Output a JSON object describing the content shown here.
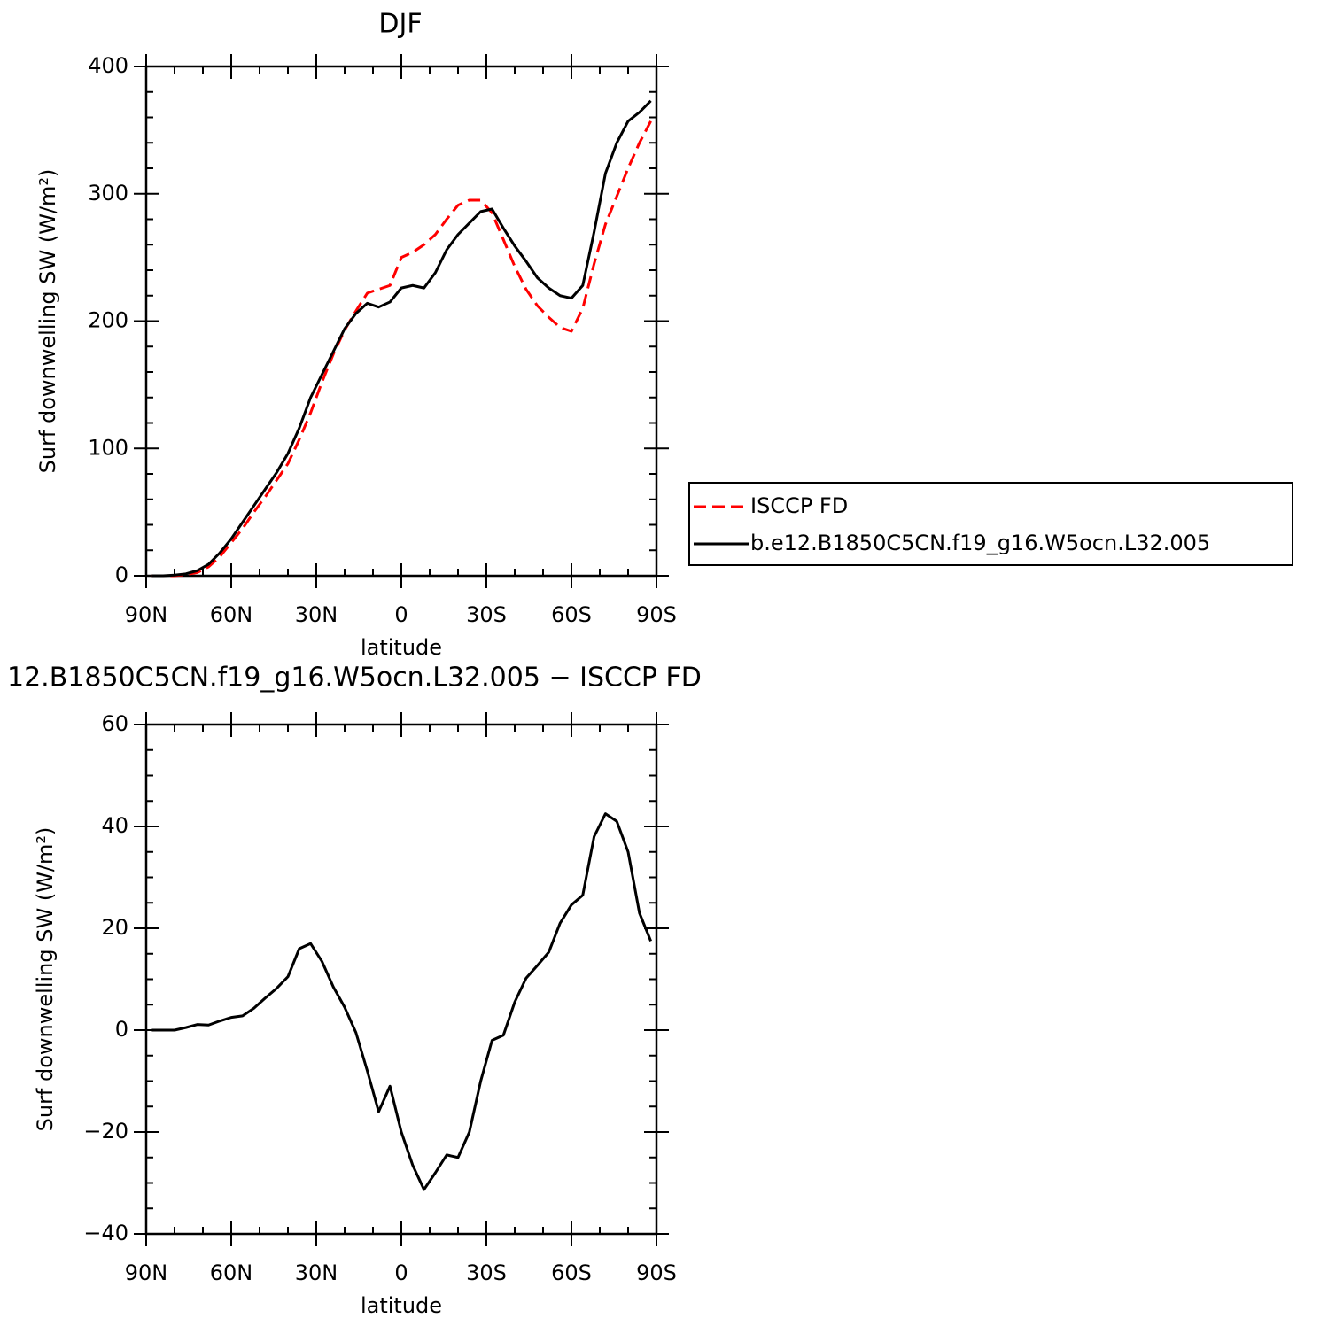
{
  "chart_data": [
    {
      "type": "line",
      "title": "DJF",
      "xlabel": "latitude",
      "ylabel": "Surf downwelling SW (W/m²)",
      "x": [
        88,
        84,
        80,
        76,
        72,
        68,
        64,
        60,
        56,
        52,
        48,
        44,
        40,
        36,
        32,
        28,
        24,
        20,
        16,
        12,
        8,
        4,
        0,
        -4,
        -8,
        -12,
        -16,
        -20,
        -24,
        -28,
        -32,
        -36,
        -40,
        -44,
        -48,
        -52,
        -56,
        -60,
        -64,
        -68,
        -72,
        -76,
        -80,
        -84,
        -88
      ],
      "xlim": [
        90,
        -90
      ],
      "xticks": [
        {
          "value": 90,
          "label": "90N"
        },
        {
          "value": 60,
          "label": "60N"
        },
        {
          "value": 30,
          "label": "30N"
        },
        0,
        {
          "value": -30,
          "label": "30S"
        },
        {
          "value": -60,
          "label": "60S"
        },
        {
          "value": -90,
          "label": "90S"
        }
      ],
      "ylim": [
        0,
        400
      ],
      "yticks": [
        0,
        100,
        200,
        300,
        400
      ],
      "legend": "right",
      "series": [
        {
          "name": "ISCCP FD",
          "color": "#ff0000",
          "linestyle": "dashed",
          "values": [
            0,
            0,
            0,
            1,
            2.5,
            7,
            15,
            26,
            37,
            50,
            62,
            75,
            88,
            107,
            128,
            152,
            174,
            193,
            208,
            222,
            225,
            228,
            250,
            254,
            260,
            268,
            280,
            291,
            295,
            295,
            285,
            264,
            243,
            225,
            212,
            203,
            195,
            192,
            210,
            245,
            276,
            298,
            320,
            340,
            357
          ]
        },
        {
          "name": "b.e12.B1850C5CN.f19_g16.W5ocn.L32.005",
          "color": "#000000",
          "linestyle": "solid",
          "values": [
            0,
            0,
            0.5,
            1.5,
            4,
            9,
            18,
            29,
            42,
            55,
            68,
            81,
            96,
            116,
            140,
            158,
            176,
            194,
            206,
            214,
            211,
            215,
            226,
            228,
            226,
            238,
            256,
            268,
            277,
            286,
            288,
            273,
            259,
            247,
            234,
            226,
            220,
            218,
            228,
            270,
            316,
            340,
            357,
            364,
            373
          ]
        }
      ]
    },
    {
      "type": "line",
      "title": "12.B1850C5CN.f19_g16.W5ocn.L32.005 − ISCCP FD",
      "xlabel": "latitude",
      "ylabel": "Surf downwelling SW (W/m²)",
      "x": [
        88,
        84,
        80,
        76,
        72,
        68,
        64,
        60,
        56,
        52,
        48,
        44,
        40,
        36,
        32,
        28,
        24,
        20,
        16,
        12,
        8,
        4,
        0,
        -4,
        -8,
        -12,
        -16,
        -20,
        -24,
        -28,
        -32,
        -36,
        -40,
        -44,
        -48,
        -52,
        -56,
        -60,
        -64,
        -68,
        -72,
        -76,
        -80,
        -84,
        -88
      ],
      "xlim": [
        90,
        -90
      ],
      "xticks": [
        {
          "value": 90,
          "label": "90N"
        },
        {
          "value": 60,
          "label": "60N"
        },
        {
          "value": 30,
          "label": "30N"
        },
        0,
        {
          "value": -30,
          "label": "30S"
        },
        {
          "value": -60,
          "label": "60S"
        },
        {
          "value": -90,
          "label": "90S"
        }
      ],
      "ylim": [
        -40,
        60
      ],
      "yticks": [
        {
          "value": -40,
          "label": "−40"
        },
        {
          "value": -20,
          "label": "−20"
        },
        0,
        20,
        40,
        60
      ],
      "color": "#000000",
      "values": [
        0,
        0,
        0,
        0.5,
        1.1,
        1,
        1.8,
        2.5,
        2.8,
        4.3,
        6.3,
        8.2,
        10.5,
        16,
        17,
        13.5,
        8.5,
        4.5,
        -0.5,
        -8,
        -16,
        -11,
        -20,
        -26.5,
        -31.3,
        -28,
        -24.5,
        -25,
        -20,
        -10,
        -2,
        -1,
        5.5,
        10.2,
        12.7,
        15.3,
        21,
        24.6,
        26.5,
        38,
        42.5,
        41,
        35,
        23,
        17.5
      ]
    }
  ]
}
